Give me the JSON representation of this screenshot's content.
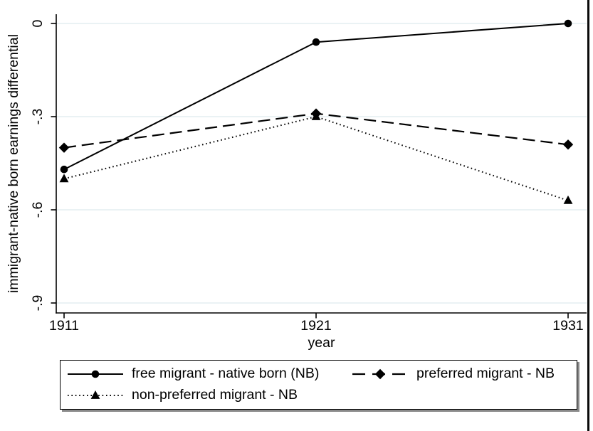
{
  "chart_data": {
    "type": "line",
    "title": "",
    "xlabel": "year",
    "ylabel": "immigrant-native born earnings differential",
    "x": [
      1911,
      1921,
      1931
    ],
    "x_tick_labels": [
      "1911",
      "1921",
      "1931"
    ],
    "y_ticks": [
      {
        "value": 0,
        "label": "0"
      },
      {
        "value": -0.3,
        "label": "-.3"
      },
      {
        "value": -0.6,
        "label": "-.6"
      },
      {
        "value": -0.9,
        "label": "-.9"
      }
    ],
    "xlim": [
      1910.7,
      1931.7
    ],
    "ylim": [
      -0.93,
      0.03
    ],
    "grid": true,
    "legend_position": "bottom-box",
    "series": [
      {
        "name": "free migrant - native born (NB)",
        "marker": "circle",
        "line_style": "solid",
        "values": [
          -0.47,
          -0.06,
          0.0
        ]
      },
      {
        "name": "preferred migrant - NB",
        "marker": "diamond",
        "line_style": "long-dash",
        "values": [
          -0.4,
          -0.29,
          -0.39
        ]
      },
      {
        "name": "non-preferred migrant - NB",
        "marker": "triangle",
        "line_style": "dotted",
        "values": [
          -0.5,
          -0.3,
          -0.57
        ]
      }
    ],
    "colors": {
      "line": "#000000",
      "axis": "#000000",
      "grid": "#e4edf0",
      "background": "#ffffff",
      "legend_shadow": "#8a8a8a"
    }
  }
}
